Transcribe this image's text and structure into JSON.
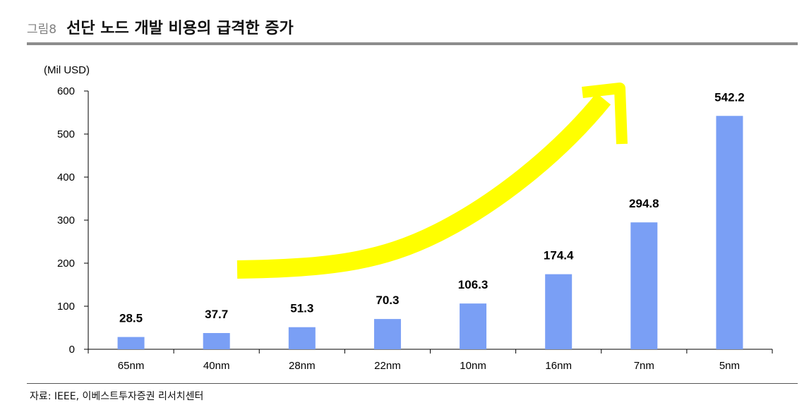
{
  "header": {
    "figure_label": "그림8",
    "title": "선단 노드 개발 비용의 급격한 증가"
  },
  "source_note": "자료: IEEE, 이베스트투자증권 리서치센터",
  "chart_data": {
    "type": "bar",
    "unit_label": "(Mil USD)",
    "categories": [
      "65nm",
      "40nm",
      "28nm",
      "22nm",
      "10nm",
      "16nm",
      "7nm",
      "5nm"
    ],
    "values": [
      28.5,
      37.7,
      51.3,
      70.3,
      106.3,
      174.4,
      294.8,
      542.2
    ],
    "value_labels": [
      "28.5",
      "37.7",
      "51.3",
      "70.3",
      "106.3",
      "174.4",
      "294.8",
      "542.2"
    ],
    "ylim": [
      0,
      600
    ],
    "yticks": [
      0,
      100,
      200,
      300,
      400,
      500,
      600
    ],
    "bar_color": "#7a9ff5",
    "grid": false,
    "annotations": [
      {
        "type": "arrow",
        "color": "#ffff00",
        "meaning": "upward trend"
      }
    ]
  }
}
